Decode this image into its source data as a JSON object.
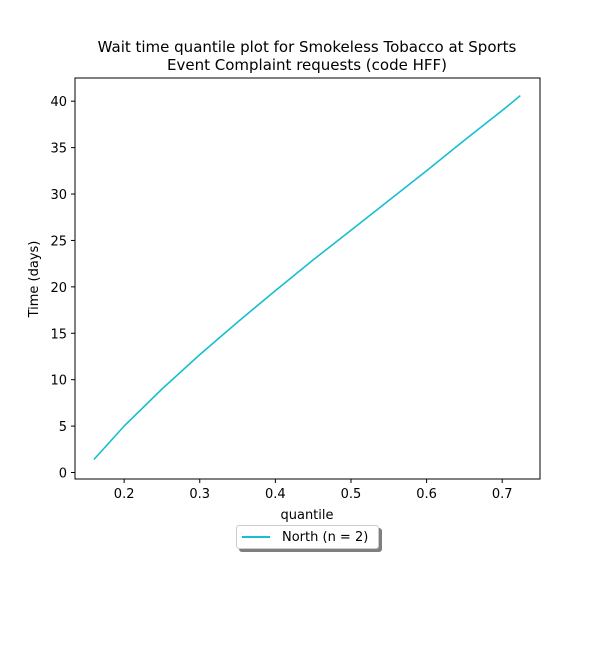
{
  "chart_data": {
    "type": "line",
    "title": "Wait time quantile plot for Smokeless Tobacco at Sports Event Complaint  requests (code HFF)",
    "title_lines": [
      "Wait time quantile plot for Smokeless Tobacco at Sports",
      "Event Complaint  requests (code HFF)"
    ],
    "xlabel": "quantile",
    "ylabel": "Time (days)",
    "xlim": [
      0.135,
      0.75
    ],
    "ylim": [
      -0.7,
      42.5
    ],
    "xticks": [
      0.2,
      0.3,
      0.4,
      0.5,
      0.6,
      0.7
    ],
    "xtick_labels": [
      "0.2",
      "0.3",
      "0.4",
      "0.5",
      "0.6",
      "0.7"
    ],
    "yticks": [
      0,
      5,
      10,
      15,
      20,
      25,
      30,
      35,
      40
    ],
    "ytick_labels": [
      "0",
      "5",
      "10",
      "15",
      "20",
      "25",
      "30",
      "35",
      "40"
    ],
    "grid": false,
    "legend_position": "below plot, centered",
    "series": [
      {
        "name": "North (n = 2)",
        "color": "#17becf",
        "x": [
          0.16,
          0.2,
          0.25,
          0.3,
          0.35,
          0.4,
          0.45,
          0.5,
          0.55,
          0.6,
          0.65,
          0.7,
          0.724
        ],
        "y": [
          1.4,
          5.0,
          9.0,
          12.7,
          16.2,
          19.6,
          22.9,
          26.1,
          29.3,
          32.5,
          35.8,
          39.0,
          40.6
        ]
      }
    ]
  }
}
